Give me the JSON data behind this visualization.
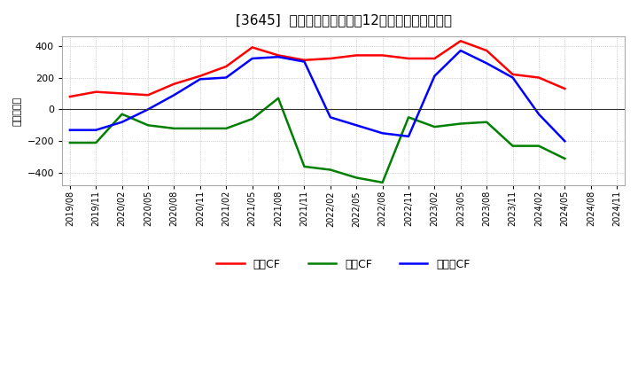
{
  "title": "[3645]  キャッシュフローの12か月移動合計の推移",
  "ylabel": "（百万円）",
  "background_color": "#ffffff",
  "plot_background": "#ffffff",
  "grid_color": "#aaaaaa",
  "ylim": [
    -480,
    460
  ],
  "yticks": [
    -400,
    -200,
    0,
    200,
    400
  ],
  "x_labels": [
    "2019/08",
    "2019/11",
    "2020/02",
    "2020/05",
    "2020/08",
    "2020/11",
    "2021/02",
    "2021/05",
    "2021/08",
    "2021/11",
    "2022/02",
    "2022/05",
    "2022/08",
    "2022/11",
    "2023/02",
    "2023/05",
    "2023/08",
    "2023/11",
    "2024/02",
    "2024/05",
    "2024/08",
    "2024/11"
  ],
  "operating_cf": [
    80,
    110,
    100,
    90,
    160,
    210,
    270,
    390,
    340,
    310,
    320,
    340,
    340,
    320,
    320,
    430,
    370,
    220,
    200,
    130,
    null,
    null
  ],
  "investing_cf": [
    -210,
    -210,
    -30,
    -100,
    -120,
    -120,
    -120,
    -60,
    70,
    -360,
    -380,
    -430,
    -460,
    -50,
    -110,
    -90,
    -80,
    -230,
    -230,
    -310,
    null,
    null
  ],
  "free_cf": [
    -130,
    -130,
    -80,
    0,
    90,
    190,
    200,
    320,
    330,
    300,
    -50,
    -100,
    -150,
    -170,
    210,
    370,
    290,
    200,
    -30,
    -200,
    null,
    null
  ],
  "operating_color": "#ff0000",
  "investing_color": "#008000",
  "free_color": "#0000ff",
  "line_width": 1.8,
  "legend_labels": [
    "営業CF",
    "投資CF",
    "フリーCF"
  ]
}
